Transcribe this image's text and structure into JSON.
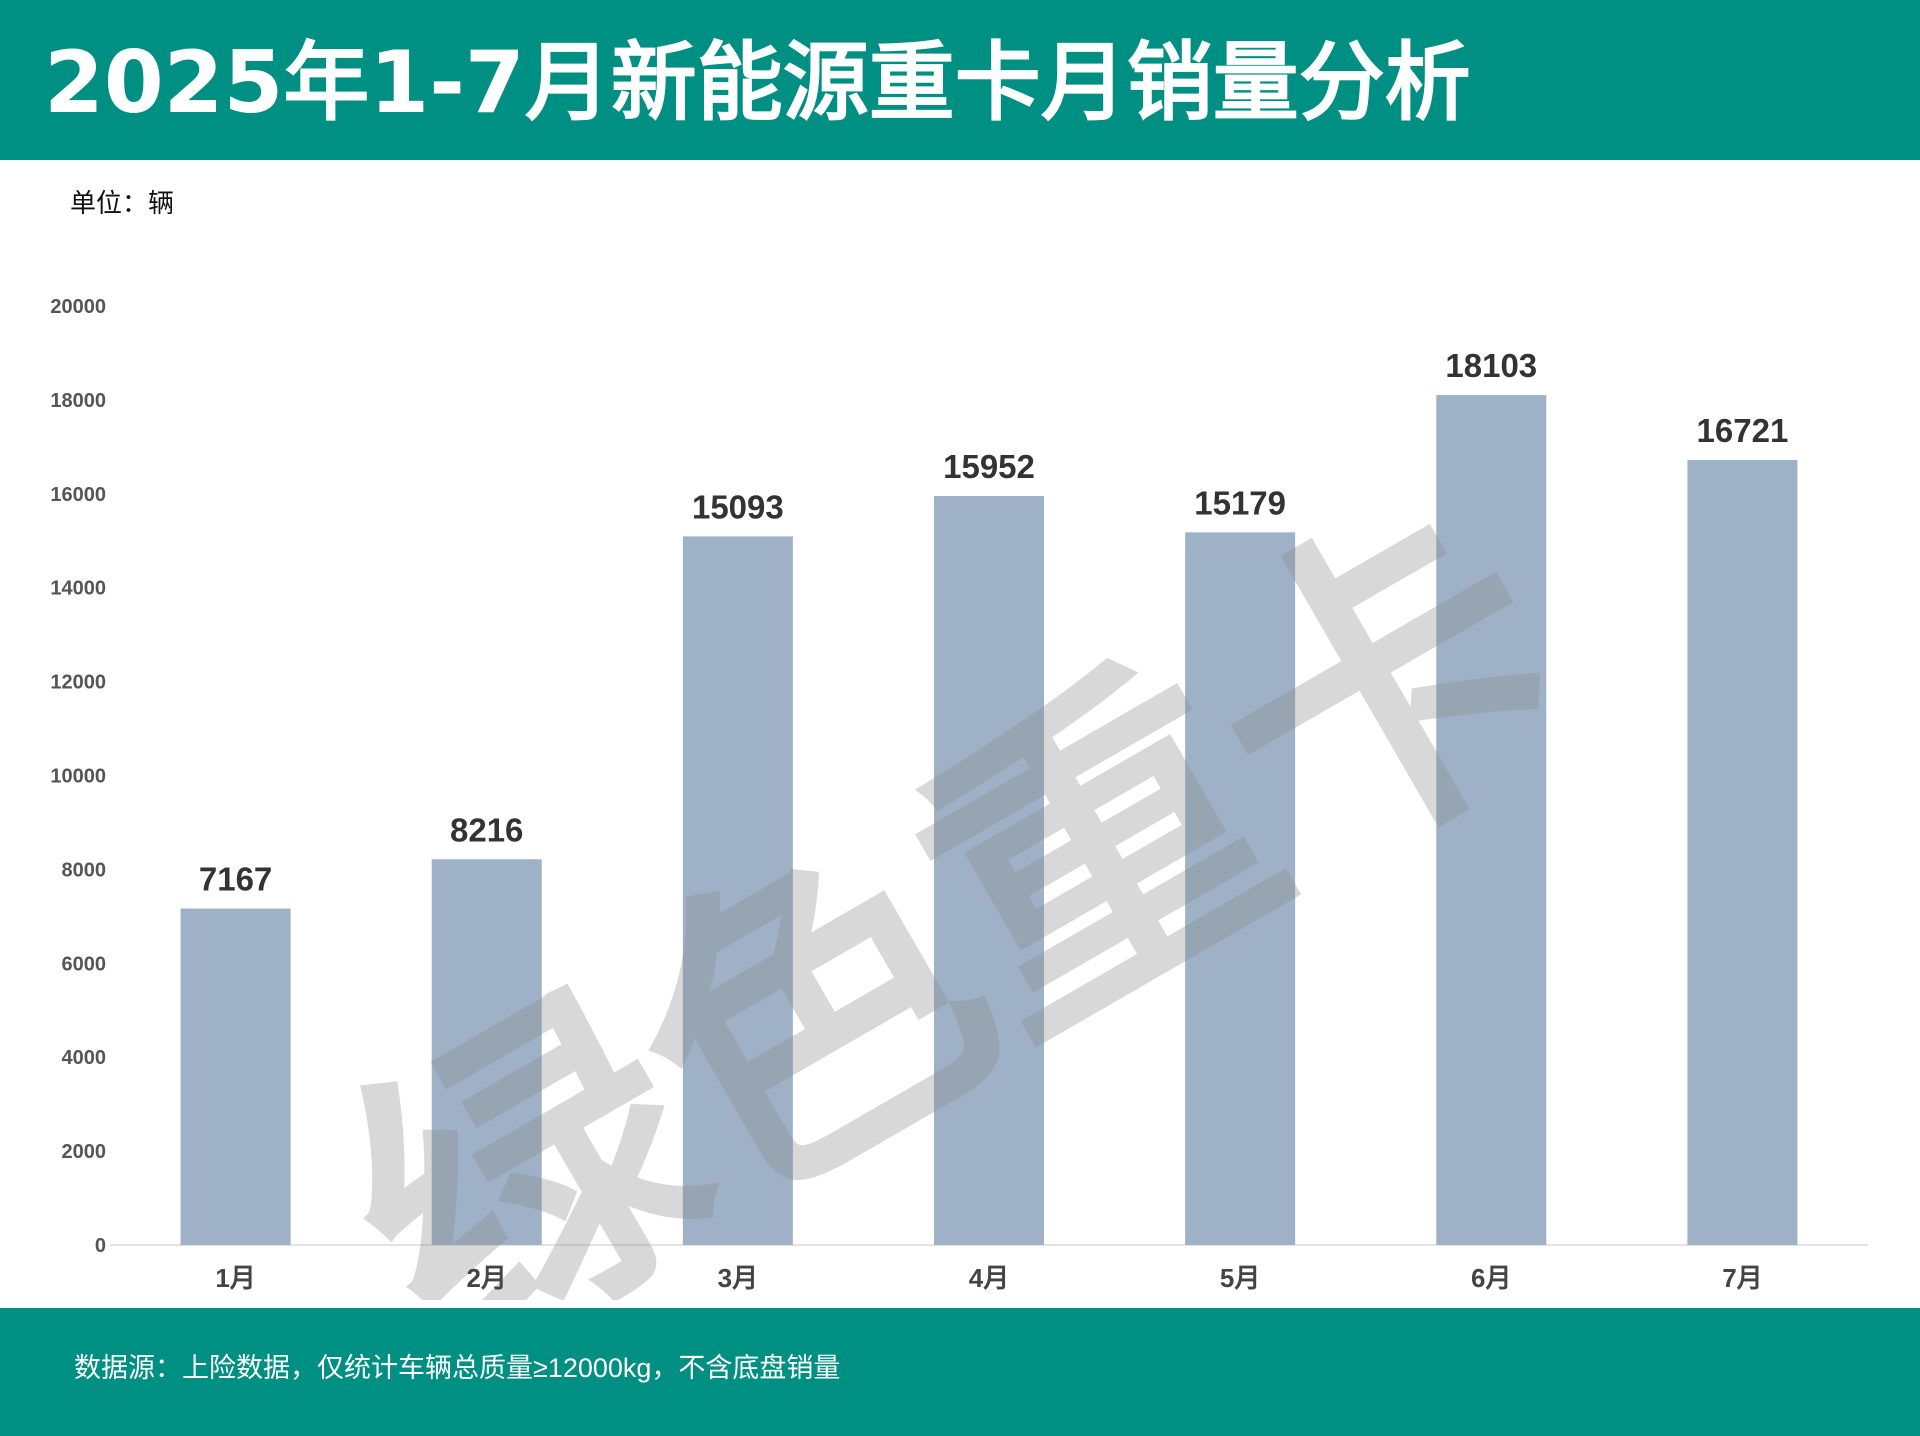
{
  "header": {
    "title": "2025年1-7月新能源重卡月销量分析"
  },
  "unit_label": "单位：辆",
  "watermark": "绿色重卡",
  "footer": {
    "source": "数据源：上险数据，仅统计车辆总质量≥12000kg，不含底盘销量"
  },
  "colors": {
    "header_bg": "#008f83",
    "bar": "#9eb1c7",
    "label": "#333333",
    "watermark": "#8a8a8a"
  },
  "chart_data": {
    "type": "bar",
    "categories": [
      "1月",
      "2月",
      "3月",
      "4月",
      "5月",
      "6月",
      "7月"
    ],
    "values": [
      7167,
      8216,
      15093,
      15952,
      15179,
      18103,
      16721
    ],
    "value_labels": [
      "7167",
      "8216",
      "15093",
      "15952",
      "15179",
      "18103",
      "16721"
    ],
    "ylim": [
      0,
      20000
    ],
    "yticks": [
      0,
      2000,
      4000,
      6000,
      8000,
      10000,
      12000,
      14000,
      16000,
      18000,
      20000
    ],
    "ytick_labels": [
      "0",
      "2000",
      "4000",
      "6000",
      "8000",
      "10000",
      "12000",
      "14000",
      "16000",
      "18000",
      "20000"
    ],
    "grid": false,
    "legend": "none"
  }
}
